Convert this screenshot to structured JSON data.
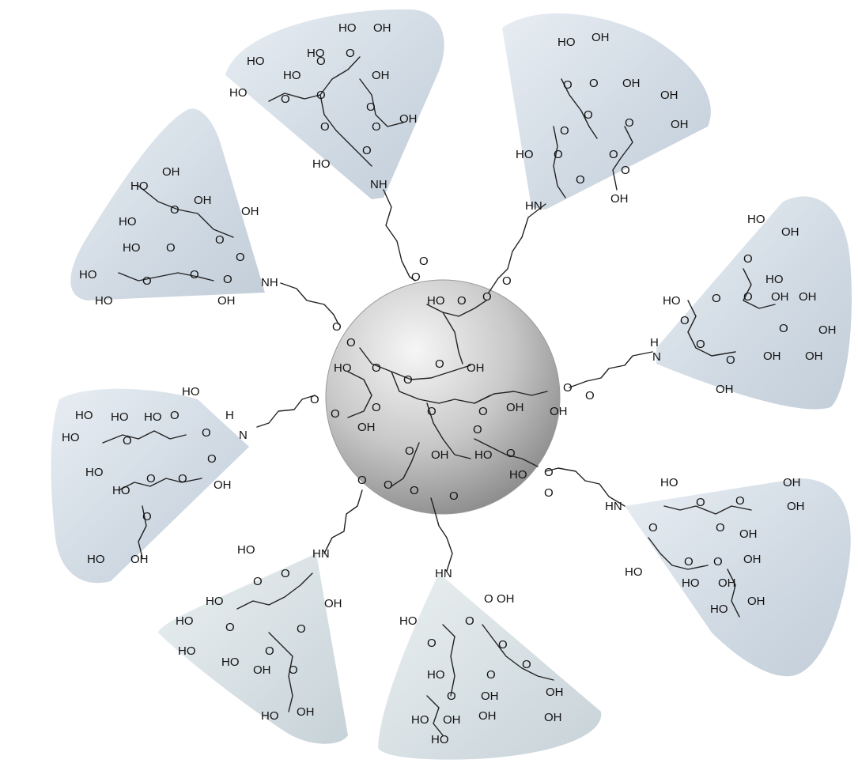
{
  "colors": {
    "cone_fill": "#cfd9e3",
    "cone_edge": "#b7c5d3",
    "core_light": "#f4f4f4",
    "core_dark": "#8e8e8e",
    "bond": "#222222"
  },
  "atoms": {
    "hydroxyl": "HO",
    "hydroxyl_r": "OH",
    "oxygen": "O",
    "amine": "NH",
    "amine_l": "HN",
    "nitrogen": "N",
    "hydrogen": "H"
  }
}
